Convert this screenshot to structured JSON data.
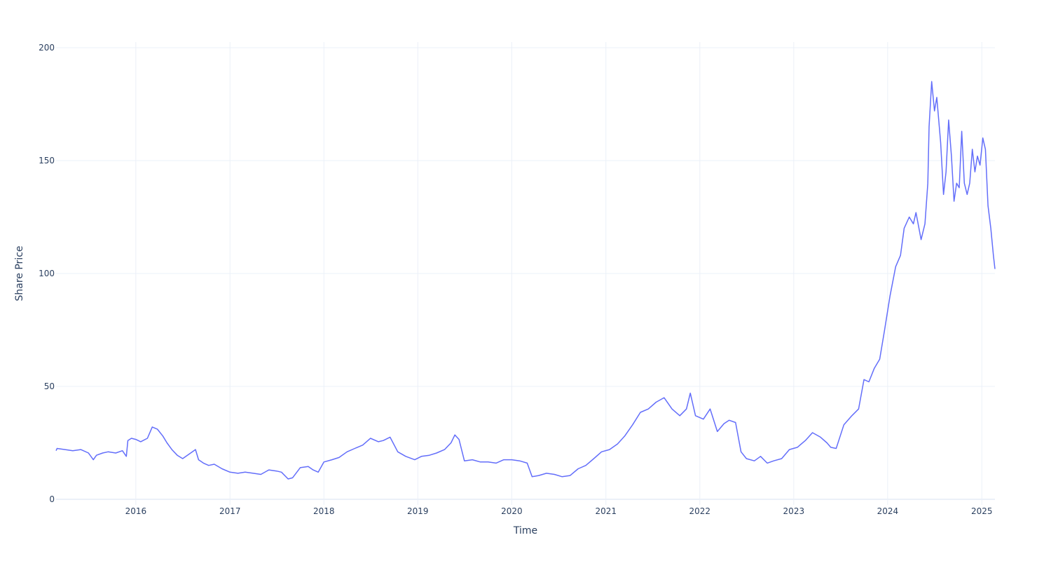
{
  "chart_data": {
    "type": "line",
    "title": "",
    "xlabel": "Time",
    "ylabel": "Share Price",
    "x_ticks": [
      "2016",
      "2017",
      "2018",
      "2019",
      "2020",
      "2021",
      "2022",
      "2023",
      "2024",
      "2025"
    ],
    "y_ticks": [
      0,
      50,
      100,
      150,
      200
    ],
    "xlim": [
      "2015-02-25",
      "2025-02-21"
    ],
    "ylim": [
      -2.5,
      202.5
    ],
    "grid": true,
    "legend": "none",
    "line_color": "#636efa",
    "series": [
      {
        "x": [
          "2015-02-25",
          "2015-03-01",
          "2015-04-01",
          "2015-05-01",
          "2015-06-01",
          "2015-07-01",
          "2015-07-20",
          "2015-08-01",
          "2015-08-25",
          "2015-09-15",
          "2015-10-15",
          "2015-11-10",
          "2015-11-25",
          "2015-12-01",
          "2015-12-15",
          "2016-01-01",
          "2016-01-20",
          "2016-02-15",
          "2016-03-05",
          "2016-03-25",
          "2016-04-15",
          "2016-05-01",
          "2016-05-20",
          "2016-06-10",
          "2016-07-01",
          "2016-08-01",
          "2016-08-20",
          "2016-09-01",
          "2016-09-20",
          "2016-10-10",
          "2016-11-01",
          "2016-12-01",
          "2017-01-01",
          "2017-02-01",
          "2017-03-01",
          "2017-04-01",
          "2017-05-01",
          "2017-06-01",
          "2017-07-01",
          "2017-07-20",
          "2017-08-15",
          "2017-09-01",
          "2017-10-01",
          "2017-11-01",
          "2017-11-20",
          "2017-12-10",
          "2018-01-01",
          "2018-02-01",
          "2018-03-01",
          "2018-04-01",
          "2018-05-01",
          "2018-06-01",
          "2018-07-01",
          "2018-08-01",
          "2018-08-20",
          "2018-09-15",
          "2018-10-15",
          "2018-11-15",
          "2018-12-20",
          "2019-01-15",
          "2019-02-15",
          "2019-03-15",
          "2019-04-15",
          "2019-05-10",
          "2019-05-25",
          "2019-06-10",
          "2019-07-01",
          "2019-08-01",
          "2019-09-01",
          "2019-10-01",
          "2019-11-01",
          "2019-12-01",
          "2020-01-01",
          "2020-02-01",
          "2020-03-01",
          "2020-03-20",
          "2020-04-15",
          "2020-05-15",
          "2020-06-15",
          "2020-07-15",
          "2020-08-15",
          "2020-09-15",
          "2020-10-15",
          "2020-11-15",
          "2020-12-15",
          "2021-01-15",
          "2021-02-15",
          "2021-03-15",
          "2021-04-15",
          "2021-05-15",
          "2021-06-15",
          "2021-07-15",
          "2021-08-15",
          "2021-09-15",
          "2021-10-15",
          "2021-11-10",
          "2021-11-25",
          "2021-12-15",
          "2022-01-15",
          "2022-02-10",
          "2022-03-10",
          "2022-04-05",
          "2022-04-25",
          "2022-05-20",
          "2022-06-10",
          "2022-07-01",
          "2022-08-01",
          "2022-08-25",
          "2022-09-20",
          "2022-10-15",
          "2022-11-15",
          "2022-12-15",
          "2023-01-15",
          "2023-02-15",
          "2023-03-15",
          "2023-04-15",
          "2023-05-10",
          "2023-05-25",
          "2023-06-15",
          "2023-07-15",
          "2023-08-15",
          "2023-09-10",
          "2023-10-01",
          "2023-10-20",
          "2023-11-10",
          "2023-12-01",
          "2023-12-20",
          "2024-01-10",
          "2024-02-01",
          "2024-02-20",
          "2024-03-05",
          "2024-03-25",
          "2024-04-10",
          "2024-04-20",
          "2024-05-10",
          "2024-05-25",
          "2024-06-05",
          "2024-06-10",
          "2024-06-20",
          "2024-07-01",
          "2024-07-10",
          "2024-07-25",
          "2024-08-05",
          "2024-08-15",
          "2024-08-25",
          "2024-09-05",
          "2024-09-15",
          "2024-09-25",
          "2024-10-05",
          "2024-10-15",
          "2024-10-25",
          "2024-11-05",
          "2024-11-15",
          "2024-11-25",
          "2024-12-05",
          "2024-12-15",
          "2024-12-25",
          "2025-01-05",
          "2025-01-15",
          "2025-01-25",
          "2025-02-05",
          "2025-02-15",
          "2025-02-21"
        ],
        "y": [
          21.5,
          22.5,
          22.0,
          21.5,
          22.0,
          20.5,
          17.5,
          19.5,
          20.5,
          21.0,
          20.5,
          21.5,
          19.0,
          26.0,
          27.0,
          26.5,
          25.5,
          27.0,
          32.0,
          31.0,
          28.0,
          25.0,
          22.0,
          19.5,
          18.0,
          20.5,
          22.0,
          17.5,
          16.0,
          15.0,
          15.5,
          13.5,
          12.0,
          11.5,
          12.0,
          11.5,
          11.0,
          13.0,
          12.5,
          12.0,
          9.0,
          9.5,
          14.0,
          14.5,
          13.0,
          12.0,
          16.5,
          17.5,
          18.5,
          21.0,
          22.5,
          24.0,
          27.0,
          25.5,
          26.0,
          27.5,
          21.0,
          19.0,
          17.5,
          19.0,
          19.5,
          20.5,
          22.0,
          25.0,
          28.5,
          26.5,
          17.0,
          17.5,
          16.5,
          16.5,
          16.0,
          17.5,
          17.5,
          17.0,
          16.0,
          10.0,
          10.5,
          11.5,
          11.0,
          10.0,
          10.5,
          13.5,
          15.0,
          18.0,
          21.0,
          22.0,
          24.5,
          28.0,
          33.0,
          38.5,
          40.0,
          43.0,
          45.0,
          40.0,
          37.0,
          40.0,
          47.0,
          37.0,
          35.5,
          40.0,
          30.0,
          33.5,
          35.0,
          34.0,
          21.0,
          18.0,
          17.0,
          19.0,
          16.0,
          17.0,
          18.0,
          22.0,
          23.0,
          26.0,
          29.5,
          27.5,
          25.0,
          23.0,
          22.5,
          33.0,
          37.0,
          40.0,
          53.0,
          52.0,
          58.0,
          62.0,
          75.0,
          90.0,
          103.0,
          108.0,
          120.0,
          125.0,
          122.0,
          127.0,
          115.0,
          122.0,
          140.0,
          165.0,
          185.0,
          172.0,
          178.0,
          158.0,
          135.0,
          145.0,
          168.0,
          152.0,
          132.0,
          140.0,
          138.0,
          163.0,
          140.0,
          135.0,
          140.0,
          155.0,
          145.0,
          152.0,
          148.0,
          160.0,
          155.0,
          130.0,
          120.0,
          108.0,
          102.0
        ]
      }
    ]
  }
}
